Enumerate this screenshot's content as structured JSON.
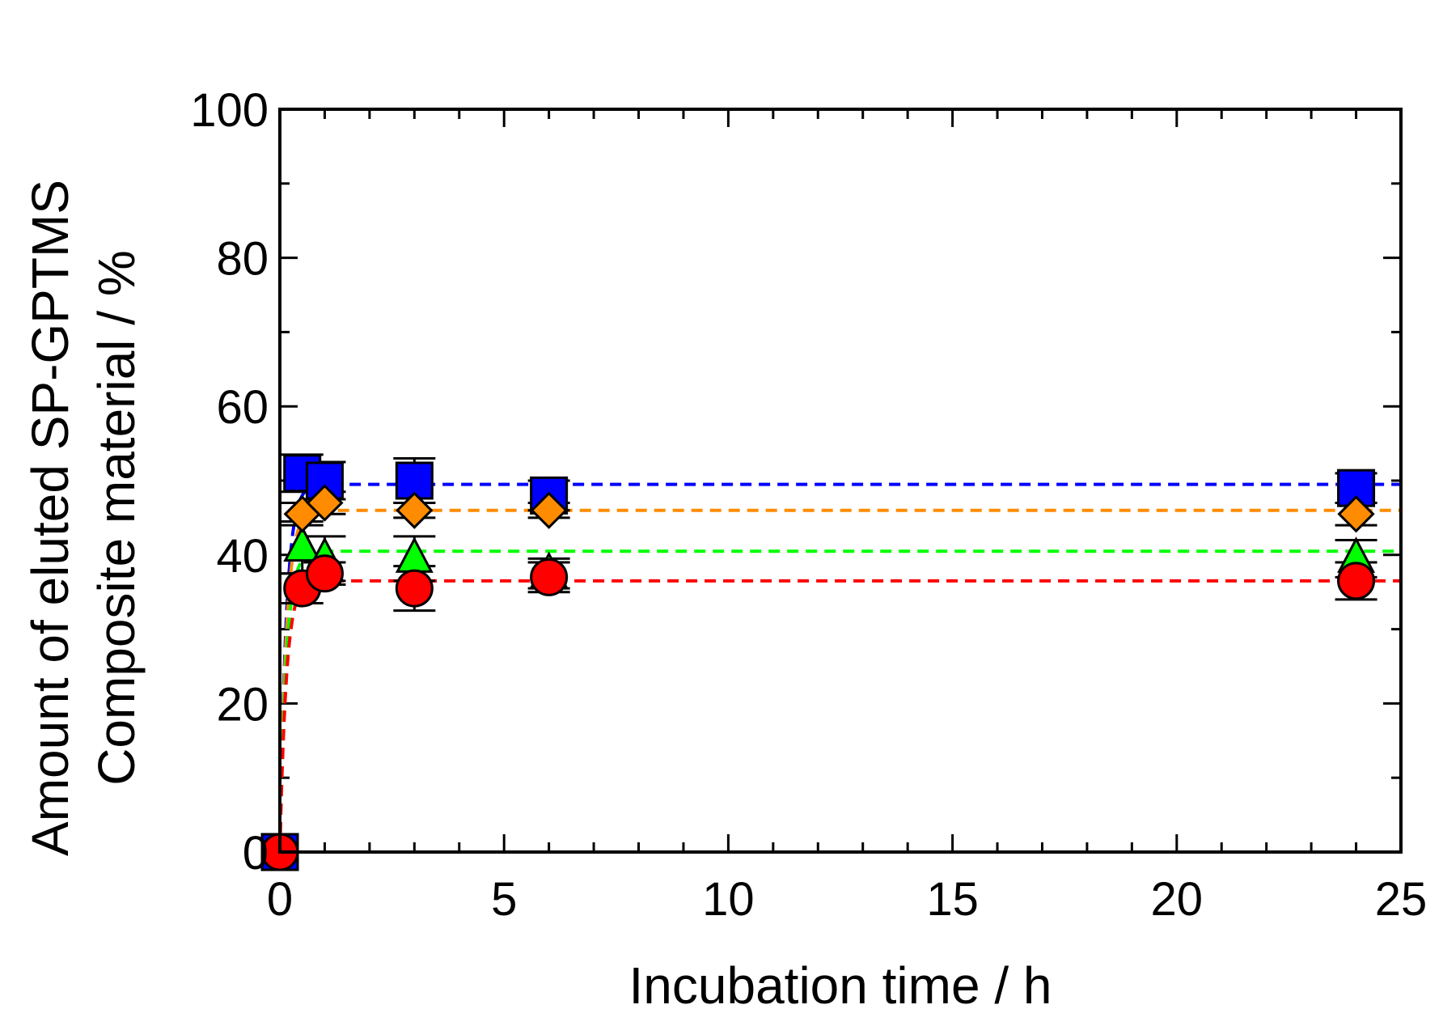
{
  "chart_data": {
    "type": "scatter",
    "title": "",
    "xlabel": "Incubation time / h",
    "ylabel_lines": [
      "Amount of eluted SP-GPTMS",
      "Composite material / %"
    ],
    "xlim": [
      0,
      25
    ],
    "ylim": [
      0,
      100
    ],
    "x_ticks": [
      0,
      5,
      10,
      15,
      20,
      25
    ],
    "y_ticks": [
      0,
      20,
      40,
      60,
      80,
      100
    ],
    "x_tick_labels": [
      "0",
      "5",
      "10",
      "15",
      "20",
      "25"
    ],
    "y_tick_labels": [
      "0",
      "20",
      "40",
      "60",
      "80",
      "100"
    ],
    "grid": false,
    "legend": "none",
    "series": [
      {
        "name": "blue squares",
        "marker": "square",
        "color": "#0000ff",
        "x": [
          0,
          0.5,
          1,
          3,
          6,
          24
        ],
        "y": [
          0,
          51,
          50,
          50,
          48,
          49
        ],
        "err": [
          0,
          2.5,
          2.5,
          3,
          2,
          2
        ],
        "fit_level": 49.5
      },
      {
        "name": "orange diamonds",
        "marker": "diamond",
        "color": "#ff8c00",
        "x": [
          0,
          0.5,
          1,
          3,
          6,
          24
        ],
        "y": [
          0,
          45.5,
          47,
          46,
          46,
          45.5
        ],
        "err": [
          0,
          1.5,
          1.5,
          1,
          1,
          1.5
        ],
        "fit_level": 46
      },
      {
        "name": "green triangles",
        "marker": "triangle",
        "color": "#00ff00",
        "x": [
          0,
          0.5,
          1,
          3,
          6,
          24
        ],
        "y": [
          0,
          41,
          39.5,
          39.5,
          37.5,
          39.5
        ],
        "err": [
          0,
          3.5,
          3,
          3,
          2,
          2.5
        ],
        "fit_level": 40.5
      },
      {
        "name": "red circles",
        "marker": "circle",
        "color": "#ff0000",
        "x": [
          0,
          0.5,
          1,
          3,
          6,
          24
        ],
        "y": [
          0,
          35.5,
          37.5,
          35.5,
          37,
          36.5
        ],
        "err": [
          0,
          2,
          1.5,
          3,
          2,
          2.5
        ],
        "fit_level": 36.5
      }
    ]
  }
}
